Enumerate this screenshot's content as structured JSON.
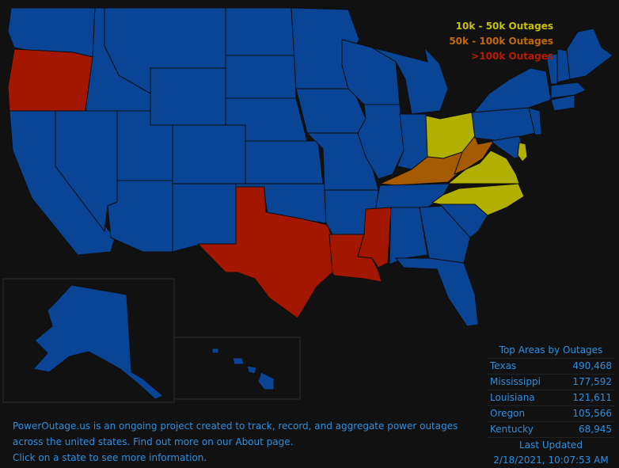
{
  "legend": {
    "items": [
      {
        "label": "10k - 50k Outages",
        "color": "#c7c200"
      },
      {
        "label": "50k - 100k Outages",
        "color": "#c26a0b"
      },
      {
        "label": ">100k Outages",
        "color": "#b81c00"
      }
    ]
  },
  "colors": {
    "normal": "#0a4595",
    "low": "#b1b001",
    "mid": "#a55a04",
    "high": "#a31700",
    "background": "#111111",
    "text": "#2f8fe0"
  },
  "top_areas": {
    "title": "Top Areas by Outages",
    "rows": [
      {
        "name": "Texas",
        "value": "490,468"
      },
      {
        "name": "Mississippi",
        "value": "177,592"
      },
      {
        "name": "Louisiana",
        "value": "121,611"
      },
      {
        "name": "Oregon",
        "value": "105,566"
      },
      {
        "name": "Kentucky",
        "value": "68,945"
      }
    ],
    "updated_label": "Last Updated",
    "updated_value": "2/18/2021, 10:07:53 AM"
  },
  "info": {
    "line1": "PowerOutage.us is an ongoing project created to track, record, and aggregate power outages",
    "line2": "across the united states. Find out more on our About page.",
    "line3": "Click on a state to see more information."
  },
  "state_levels": {
    "Texas": "high",
    "Mississippi": "high",
    "Louisiana": "high",
    "Oregon": "high",
    "Kentucky": "mid",
    "West Virginia": "mid",
    "Ohio": "low",
    "Virginia": "low",
    "North Carolina": "low",
    "Delaware": "low"
  }
}
